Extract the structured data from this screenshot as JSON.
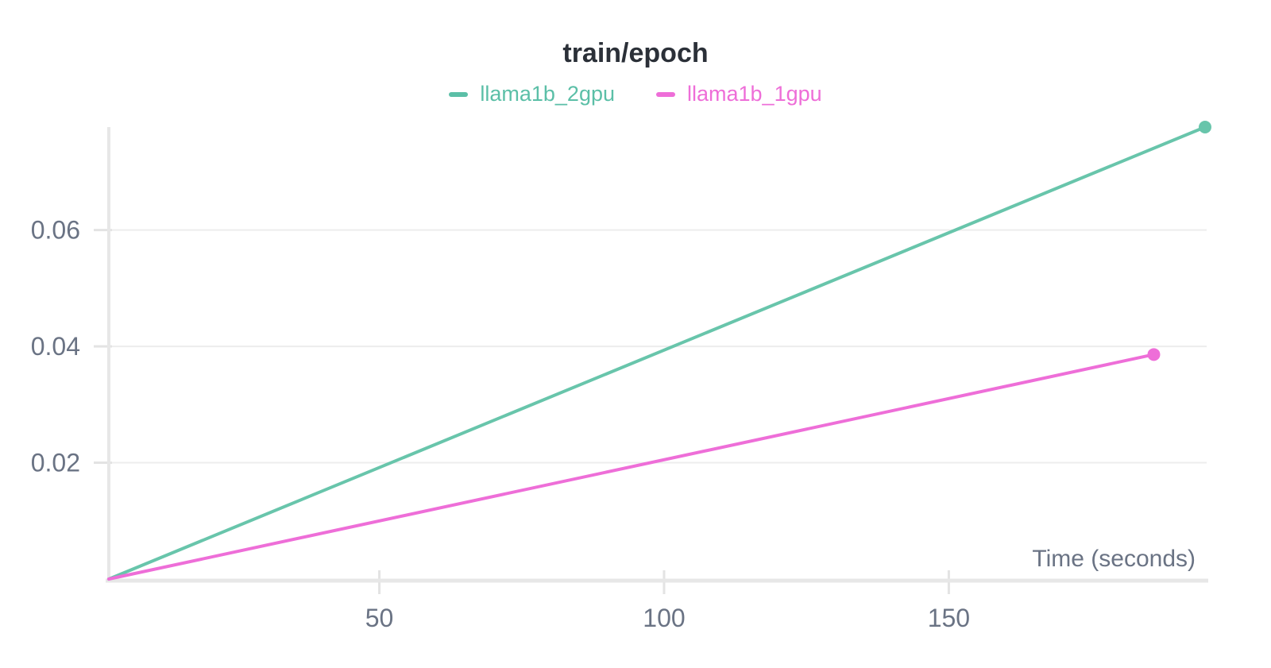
{
  "title": "train/epoch",
  "legend": {
    "items": [
      {
        "label": "llama1b_2gpu",
        "color": "#5bbfa7"
      },
      {
        "label": "llama1b_1gpu",
        "color": "#ee6ed8"
      }
    ]
  },
  "axis": {
    "x_label": "Time (seconds)",
    "x_tick_labels": [
      "50",
      "100",
      "150"
    ],
    "y_tick_labels": [
      "0.02",
      "0.04",
      "0.06"
    ],
    "tick_text_color": "#6a7384",
    "axis_line_color": "#e7e7e7",
    "grid_line_color": "#ededed",
    "tick_mark_color": "#e3e3e3"
  },
  "chart_data": {
    "type": "line",
    "title": "train/epoch",
    "xlabel": "Time (seconds)",
    "ylabel": "",
    "xlim": [
      2.5,
      195
    ],
    "ylim": [
      0,
      0.0777
    ],
    "x_ticks": [
      50,
      100,
      150
    ],
    "y_ticks": [
      0.02,
      0.04,
      0.06
    ],
    "grid": "horizontal",
    "legend_position": "top-center",
    "series": [
      {
        "name": "llama1b_2gpu",
        "color": "#68c5ab",
        "x": [
          2.5,
          195
        ],
        "y": [
          0.0,
          0.0777
        ],
        "end_marker": true
      },
      {
        "name": "llama1b_1gpu",
        "color": "#ee6ed8",
        "x": [
          2.5,
          186
        ],
        "y": [
          0.0,
          0.0386
        ],
        "end_marker": true
      }
    ]
  }
}
